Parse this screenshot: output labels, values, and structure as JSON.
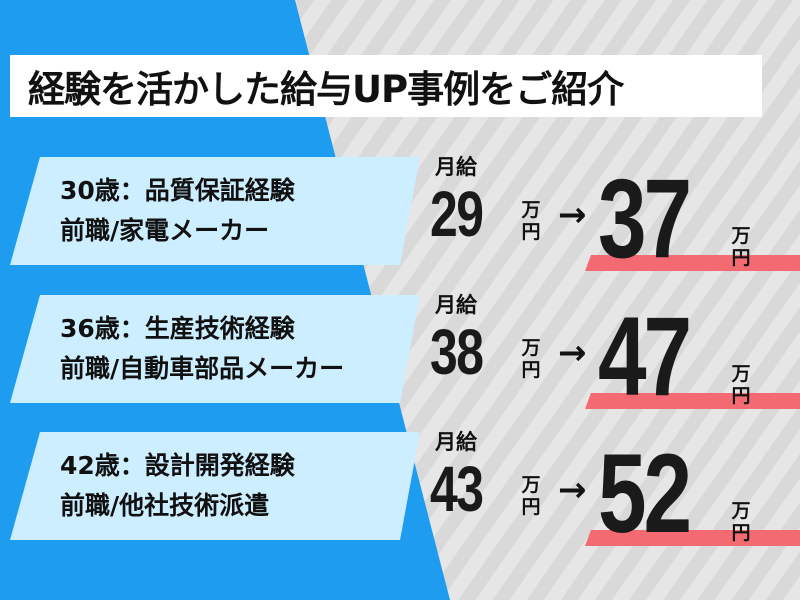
{
  "title": "経験を活かした給与UP事例をご紹介",
  "colors": {
    "blue": "#1e9cf0",
    "card": "#cdeeff",
    "accent_bar": "#f46a72"
  },
  "cases": [
    {
      "line1": "30歳：品質保証経験",
      "line2": "前職/家電メーカー",
      "label": "月給",
      "before": "29",
      "after": "37",
      "unit1": "万",
      "unit2": "円",
      "arrow": "→"
    },
    {
      "line1": "36歳：生産技術経験",
      "line2": "前職/自動車部品メーカー",
      "label": "月給",
      "before": "38",
      "after": "47",
      "unit1": "万",
      "unit2": "円",
      "arrow": "→"
    },
    {
      "line1": "42歳：設計開発経験",
      "line2": "前職/他社技術派遣",
      "label": "月給",
      "before": "43",
      "after": "52",
      "unit1": "万",
      "unit2": "円",
      "arrow": "→"
    }
  ]
}
